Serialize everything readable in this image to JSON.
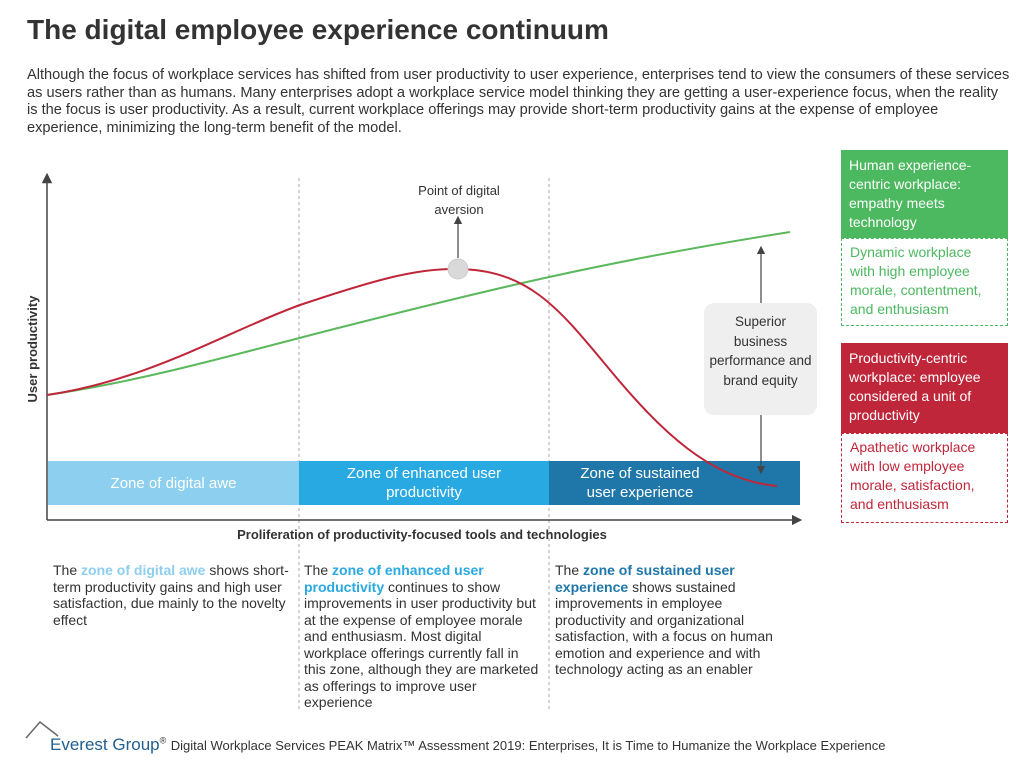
{
  "header": {
    "title": "The digital employee experience continuum",
    "intro": "Although the focus of workplace services has shifted from user productivity to user experience, enterprises tend to view the consumers of these services as users rather than as humans. Many enterprises adopt a workplace service model thinking they are getting a user-experience focus, when the reality is the focus is user productivity. As a result, current workplace offerings may provide short-term productivity gains at the expense of employee experience, minimizing the long-term benefit of the model."
  },
  "diagram": {
    "y_axis_label": "User productivity",
    "x_axis_label": "Proliferation of productivity-focused tools and technologies",
    "peak_callout": "Point of digital aversion",
    "box_callout": "Superior business performance and brand equity",
    "zones": [
      "Zone of digital awe",
      "Zone of enhanced user productivity",
      "Zone of sustained user experience"
    ]
  },
  "legend": [
    {
      "title": "Human experience-centric workplace: empathy meets technology",
      "description": "Dynamic workplace with high employee morale, contentment, and enthusiasm"
    },
    {
      "title": "Productivity-centric workplace: employee considered a unit of productivity",
      "description": "Apathetic workplace with low employee morale, satisfaction, and enthusiasm"
    }
  ],
  "zone_descriptions": [
    {
      "lead": "The",
      "highlight": "zone of digital awe",
      "text": "shows short-term productivity gains and high user satisfaction, due mainly to the novelty effect"
    },
    {
      "lead": "The",
      "highlight": "zone of enhanced user productivity",
      "text": "continues to show improvements in user productivity but at the expense of employee morale and enthusiasm. Most digital workplace offerings currently fall in this zone, although they are marketed as offerings to improve user experience"
    },
    {
      "lead": "The",
      "highlight": "zone of sustained user experience",
      "text": "shows sustained improvements in employee productivity and organizational satisfaction, with a focus on human emotion and experience and with technology acting as an enabler"
    }
  ],
  "footer": {
    "brand": "Everest Group",
    "registered": "®",
    "citation": "Digital Workplace Services PEAK Matrix™ Assessment 2019: Enterprises, It is Time to Humanize the Workplace Experience"
  }
}
